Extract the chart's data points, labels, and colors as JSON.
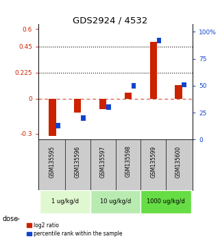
{
  "title": "GDS2924 / 4532",
  "samples": [
    "GSM135595",
    "GSM135596",
    "GSM135597",
    "GSM135598",
    "GSM135599",
    "GSM135600"
  ],
  "log2_ratio": [
    -0.32,
    -0.12,
    -0.09,
    0.055,
    0.49,
    0.115
  ],
  "percentile_rank": [
    13,
    20,
    30,
    50,
    92,
    51
  ],
  "ylim_left": [
    -0.35,
    0.64
  ],
  "ylim_right": [
    0,
    107
  ],
  "yticks_left": [
    -0.3,
    0.0,
    0.225,
    0.45,
    0.6
  ],
  "yticks_right": [
    0,
    25,
    50,
    75,
    100
  ],
  "ytick_labels_left": [
    "-0.3",
    "0",
    "0.225",
    "0.45",
    "0.6"
  ],
  "ytick_labels_right": [
    "0",
    "25",
    "50",
    "75",
    "100%"
  ],
  "hlines": [
    0.225,
    0.45
  ],
  "red_color": "#cc2200",
  "blue_color": "#1144cc",
  "bg_color": "#ffffff",
  "dose_groups": [
    {
      "label": "1 ug/kg/d",
      "start": 0,
      "end": 1,
      "color": "#e0f8d0"
    },
    {
      "label": "10 ug/kg/d",
      "start": 2,
      "end": 3,
      "color": "#b8ebb0"
    },
    {
      "label": "1000 ug/kg/d",
      "start": 4,
      "end": 5,
      "color": "#66dd44"
    }
  ],
  "legend_red": "log2 ratio",
  "legend_blue": "percentile rank within the sample"
}
